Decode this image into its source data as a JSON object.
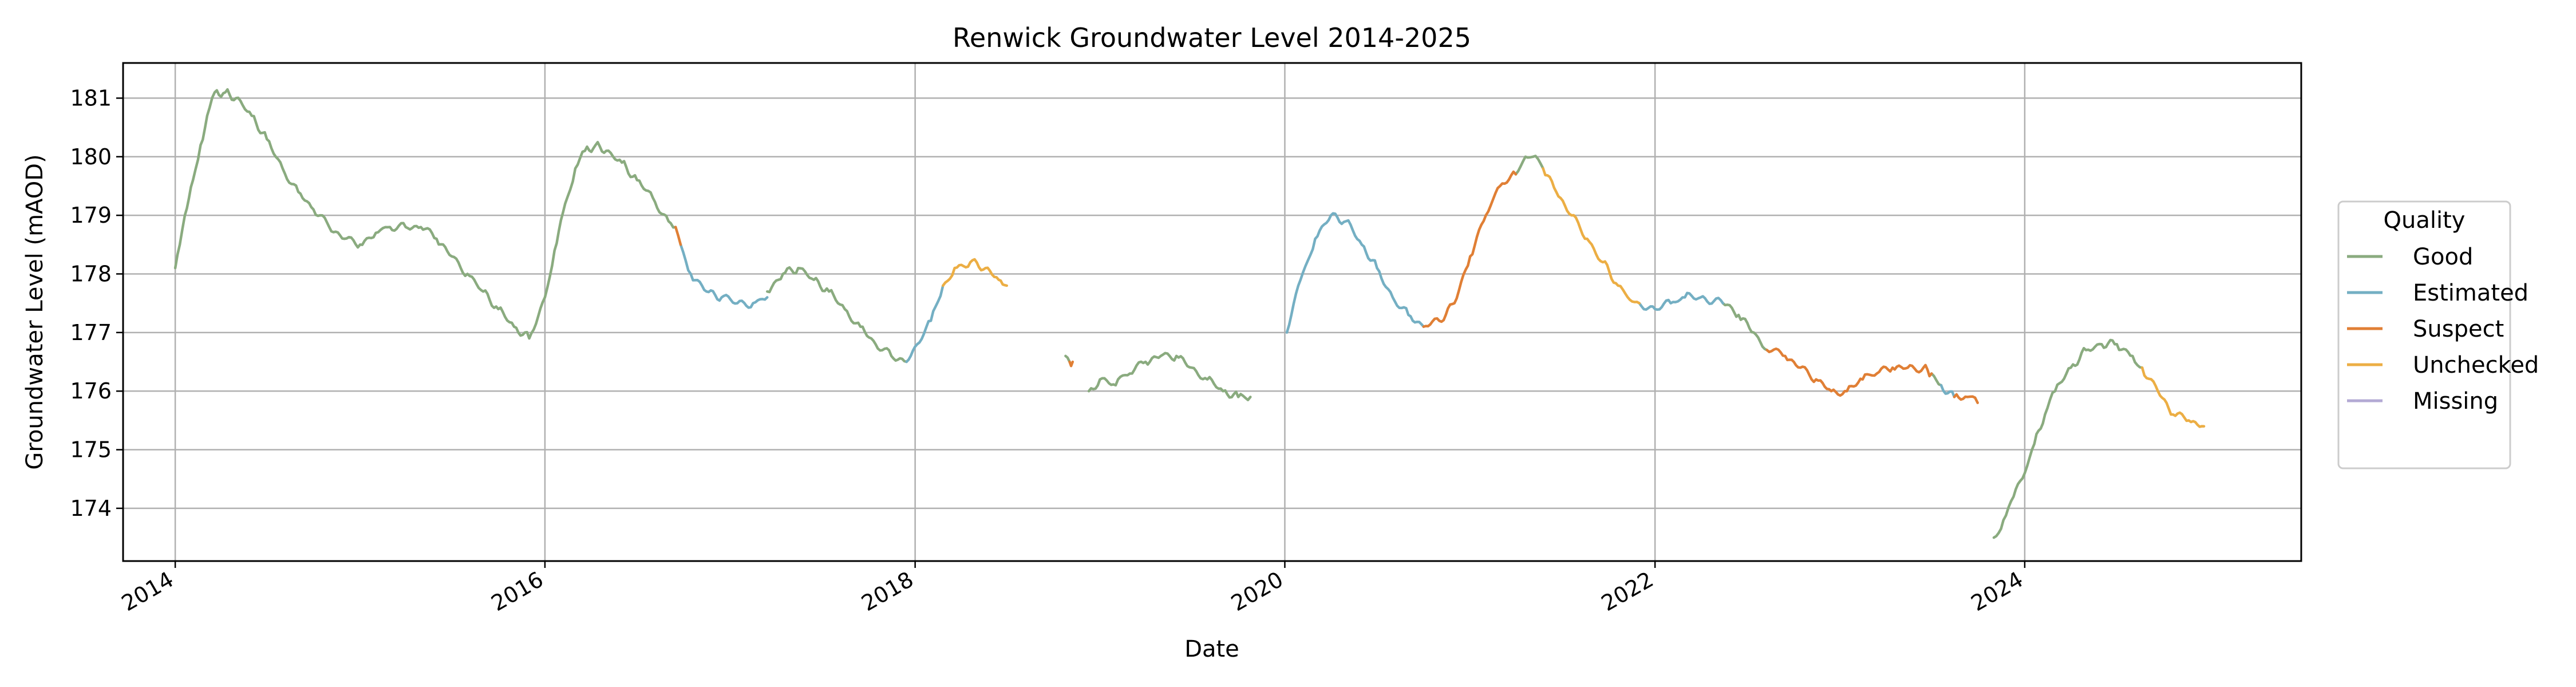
{
  "chart_data": {
    "type": "line",
    "title": "Renwick Groundwater Level 2014-2025",
    "xlabel": "Date",
    "ylabel": "Groundwater Level (mAOD)",
    "xlim": [
      "2013-09-20",
      "2025-06-30"
    ],
    "ylim": [
      173.1,
      181.6
    ],
    "x_ticks": [
      "2014",
      "2016",
      "2018",
      "2020",
      "2022",
      "2024"
    ],
    "y_ticks": [
      174,
      175,
      176,
      177,
      178,
      179,
      180,
      181
    ],
    "grid": true,
    "legend": {
      "title": "Quality",
      "placement": "right-outside",
      "entries": [
        {
          "name": "Good",
          "color": "#8aab7f"
        },
        {
          "name": "Estimated",
          "color": "#74afc3"
        },
        {
          "name": "Suspect",
          "color": "#e07f35"
        },
        {
          "name": "Unchecked",
          "color": "#ecae44"
        },
        {
          "name": "Missing",
          "color": "#b3a9d4"
        }
      ]
    },
    "series": [
      {
        "name": "Good",
        "color": "#8aab7f",
        "segments": [
          [
            [
              "2014-01-01",
              178.1
            ],
            [
              "2014-01-10",
              178.5
            ],
            [
              "2014-01-20",
              179.0
            ],
            [
              "2014-02-05",
              179.6
            ],
            [
              "2014-02-20",
              180.2
            ],
            [
              "2014-03-05",
              180.7
            ],
            [
              "2014-03-20",
              181.1
            ],
            [
              "2014-04-10",
              181.1
            ],
            [
              "2014-05-01",
              181.0
            ],
            [
              "2014-06-01",
              180.7
            ],
            [
              "2014-07-01",
              180.3
            ],
            [
              "2014-08-01",
              179.8
            ],
            [
              "2014-09-01",
              179.4
            ],
            [
              "2014-10-01",
              179.1
            ],
            [
              "2014-11-01",
              178.8
            ],
            [
              "2014-12-01",
              178.6
            ],
            [
              "2015-01-01",
              178.5
            ],
            [
              "2015-02-01",
              178.7
            ],
            [
              "2015-03-01",
              178.8
            ],
            [
              "2015-04-01",
              178.8
            ],
            [
              "2015-05-01",
              178.8
            ],
            [
              "2015-06-01",
              178.6
            ],
            [
              "2015-07-01",
              178.3
            ],
            [
              "2015-08-01",
              178.0
            ],
            [
              "2015-09-01",
              177.7
            ],
            [
              "2015-10-01",
              177.4
            ],
            [
              "2015-11-01",
              177.1
            ],
            [
              "2015-12-01",
              176.9
            ],
            [
              "2016-01-01",
              177.6
            ],
            [
              "2016-01-20",
              178.4
            ],
            [
              "2016-02-10",
              179.2
            ],
            [
              "2016-03-01",
              179.8
            ],
            [
              "2016-03-20",
              180.1
            ],
            [
              "2016-04-10",
              180.2
            ],
            [
              "2016-05-01",
              180.1
            ],
            [
              "2016-06-01",
              179.9
            ],
            [
              "2016-07-01",
              179.6
            ],
            [
              "2016-08-01",
              179.3
            ],
            [
              "2016-09-01",
              178.9
            ],
            [
              "2016-09-15",
              178.8
            ]
          ],
          [
            [
              "2017-03-15",
              177.7
            ],
            [
              "2017-04-15",
              178.0
            ],
            [
              "2017-05-15",
              178.1
            ],
            [
              "2017-06-15",
              177.9
            ],
            [
              "2017-07-15",
              177.7
            ],
            [
              "2017-08-15",
              177.4
            ],
            [
              "2017-09-15",
              177.1
            ],
            [
              "2017-10-15",
              176.8
            ],
            [
              "2017-11-15",
              176.6
            ],
            [
              "2017-12-15",
              176.5
            ]
          ],
          [
            [
              "2018-10-25",
              176.6
            ],
            [
              "2018-11-02",
              176.5
            ]
          ],
          [
            [
              "2018-12-10",
              176.0
            ],
            [
              "2019-01-01",
              176.2
            ],
            [
              "2019-02-01",
              176.1
            ],
            [
              "2019-03-01",
              176.3
            ],
            [
              "2019-04-01",
              176.5
            ],
            [
              "2019-05-01",
              176.6
            ],
            [
              "2019-06-01",
              176.6
            ],
            [
              "2019-07-01",
              176.4
            ],
            [
              "2019-08-01",
              176.2
            ],
            [
              "2019-09-01",
              176.0
            ],
            [
              "2019-10-01",
              175.9
            ],
            [
              "2019-10-25",
              175.9
            ]
          ],
          [
            [
              "2021-04-01",
              179.7
            ],
            [
              "2021-04-20",
              180.0
            ],
            [
              "2021-05-05",
              180.0
            ],
            [
              "2021-05-25",
              179.8
            ]
          ],
          [
            [
              "2022-05-15",
              177.5
            ],
            [
              "2022-06-15",
              177.3
            ],
            [
              "2022-07-15",
              177.0
            ],
            [
              "2022-08-10",
              176.7
            ]
          ],
          [
            [
              "2023-07-01",
              176.3
            ],
            [
              "2023-07-20",
              176.1
            ]
          ],
          [
            [
              "2023-11-01",
              173.5
            ],
            [
              "2023-11-20",
              173.8
            ],
            [
              "2023-12-10",
              174.2
            ],
            [
              "2024-01-01",
              174.6
            ],
            [
              "2024-01-20",
              175.1
            ],
            [
              "2024-02-10",
              175.6
            ],
            [
              "2024-03-01",
              176.0
            ],
            [
              "2024-04-01",
              176.4
            ],
            [
              "2024-05-01",
              176.7
            ],
            [
              "2024-06-01",
              176.8
            ],
            [
              "2024-07-01",
              176.8
            ],
            [
              "2024-08-01",
              176.6
            ],
            [
              "2024-08-20",
              176.4
            ]
          ]
        ]
      },
      {
        "name": "Estimated",
        "color": "#74afc3",
        "segments": [
          [
            [
              "2016-09-25",
              178.5
            ],
            [
              "2016-10-15",
              178.0
            ],
            [
              "2016-11-15",
              177.7
            ],
            [
              "2016-12-15",
              177.6
            ],
            [
              "2017-01-15",
              177.5
            ],
            [
              "2017-02-15",
              177.5
            ],
            [
              "2017-03-15",
              177.6
            ]
          ],
          [
            [
              "2017-12-15",
              176.5
            ],
            [
              "2018-01-05",
              176.8
            ],
            [
              "2018-02-01",
              177.2
            ],
            [
              "2018-02-25",
              177.8
            ]
          ],
          [
            [
              "2020-01-05",
              177.0
            ],
            [
              "2020-02-01",
              177.9
            ],
            [
              "2020-03-01",
              178.6
            ],
            [
              "2020-04-01",
              179.0
            ],
            [
              "2020-05-01",
              178.9
            ],
            [
              "2020-06-01",
              178.5
            ],
            [
              "2020-07-01",
              178.1
            ],
            [
              "2020-08-01",
              177.6
            ],
            [
              "2020-09-01",
              177.3
            ],
            [
              "2020-10-01",
              177.1
            ]
          ],
          [
            [
              "2021-12-01",
              177.5
            ],
            [
              "2022-01-01",
              177.4
            ],
            [
              "2022-02-01",
              177.5
            ],
            [
              "2022-03-01",
              177.6
            ],
            [
              "2022-04-01",
              177.6
            ],
            [
              "2022-05-15",
              177.5
            ]
          ],
          [
            [
              "2023-07-20",
              176.1
            ],
            [
              "2023-08-15",
              175.9
            ]
          ]
        ]
      },
      {
        "name": "Suspect",
        "color": "#e07f35",
        "segments": [
          [
            [
              "2016-09-15",
              178.8
            ],
            [
              "2016-09-25",
              178.5
            ]
          ],
          [
            [
              "2018-11-02",
              176.5
            ],
            [
              "2018-11-08",
              176.5
            ]
          ],
          [
            [
              "2020-10-01",
              177.1
            ],
            [
              "2020-11-01",
              177.2
            ],
            [
              "2020-12-01",
              177.5
            ],
            [
              "2021-01-01",
              178.3
            ],
            [
              "2021-02-01",
              179.0
            ],
            [
              "2021-03-01",
              179.5
            ],
            [
              "2021-04-01",
              179.7
            ]
          ],
          [
            [
              "2022-08-10",
              176.7
            ],
            [
              "2022-09-15",
              176.6
            ],
            [
              "2022-10-15",
              176.4
            ],
            [
              "2022-11-15",
              176.2
            ],
            [
              "2022-12-15",
              176.0
            ],
            [
              "2023-01-15",
              176.0
            ],
            [
              "2023-02-15",
              176.2
            ],
            [
              "2023-03-15",
              176.3
            ],
            [
              "2023-04-15",
              176.4
            ],
            [
              "2023-05-15",
              176.4
            ],
            [
              "2023-06-15",
              176.4
            ],
            [
              "2023-07-01",
              176.3
            ]
          ],
          [
            [
              "2023-08-15",
              175.9
            ],
            [
              "2023-09-10",
              175.9
            ],
            [
              "2023-09-30",
              175.8
            ]
          ]
        ]
      },
      {
        "name": "Unchecked",
        "color": "#ecae44",
        "segments": [
          [
            [
              "2018-02-25",
              177.8
            ],
            [
              "2018-03-20",
              178.1
            ],
            [
              "2018-04-20",
              178.2
            ],
            [
              "2018-05-20",
              178.1
            ],
            [
              "2018-06-15",
              177.9
            ],
            [
              "2018-07-01",
              177.8
            ]
          ],
          [
            [
              "2021-05-25",
              179.8
            ],
            [
              "2021-06-20",
              179.4
            ],
            [
              "2021-07-20",
              179.0
            ],
            [
              "2021-08-20",
              178.6
            ],
            [
              "2021-09-20",
              178.2
            ],
            [
              "2021-10-20",
              177.8
            ],
            [
              "2021-12-01",
              177.5
            ]
          ],
          [
            [
              "2024-08-20",
              176.4
            ],
            [
              "2024-09-20",
              176.0
            ],
            [
              "2024-10-20",
              175.6
            ],
            [
              "2024-11-20",
              175.5
            ],
            [
              "2024-12-20",
              175.4
            ]
          ]
        ]
      },
      {
        "name": "Missing",
        "color": "#b3a9d4",
        "segments": []
      }
    ]
  }
}
